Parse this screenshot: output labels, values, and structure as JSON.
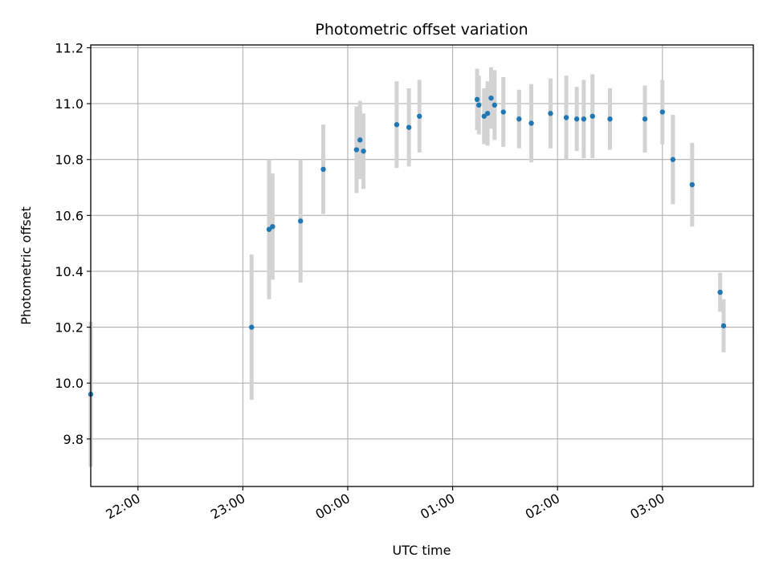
{
  "chart_data": {
    "type": "scatter",
    "title": "Photometric offset variation",
    "xlabel": "UTC time",
    "ylabel": "Photometric offset",
    "grid": true,
    "legend": "none",
    "x_tick_labels": [
      "22:00",
      "23:00",
      "00:00",
      "01:00",
      "02:00",
      "03:00"
    ],
    "x_tick_values": [
      "22:00",
      "23:00",
      "00:00",
      "01:00",
      "02:00",
      "03:00"
    ],
    "y_ticks": [
      9.8,
      10.0,
      10.2,
      10.4,
      10.6,
      10.8,
      11.0,
      11.2
    ],
    "y_tick_labels": [
      "9.8",
      "10.0",
      "10.2",
      "10.4",
      "10.6",
      "10.8",
      "11.0",
      "11.2"
    ],
    "xlim": [
      "21:33",
      "03:52"
    ],
    "ylim": [
      9.63,
      11.21
    ],
    "colors": {
      "point": "#1f77b4",
      "errorbar": "#d3d3d3",
      "grid": "#b0b0b0"
    },
    "series": [
      {
        "points": [
          {
            "x": "21:33",
            "y": 9.96,
            "err": 0.26
          },
          {
            "x": "23:05",
            "y": 10.2,
            "err": 0.26
          },
          {
            "x": "23:15",
            "y": 10.55,
            "err": 0.25
          },
          {
            "x": "23:17",
            "y": 10.56,
            "err": 0.19
          },
          {
            "x": "23:33",
            "y": 10.58,
            "err": 0.22
          },
          {
            "x": "23:46",
            "y": 10.765,
            "err": 0.16
          },
          {
            "x": "00:05",
            "y": 10.835,
            "err": 0.155
          },
          {
            "x": "00:07",
            "y": 10.87,
            "err": 0.14
          },
          {
            "x": "00:09",
            "y": 10.83,
            "err": 0.135
          },
          {
            "x": "00:28",
            "y": 10.925,
            "err": 0.155
          },
          {
            "x": "00:35",
            "y": 10.915,
            "err": 0.14
          },
          {
            "x": "00:41",
            "y": 10.955,
            "err": 0.13
          },
          {
            "x": "01:14",
            "y": 11.015,
            "err": 0.11
          },
          {
            "x": "01:15",
            "y": 10.995,
            "err": 0.105
          },
          {
            "x": "01:18",
            "y": 10.955,
            "err": 0.1
          },
          {
            "x": "01:20",
            "y": 10.965,
            "err": 0.115
          },
          {
            "x": "01:22",
            "y": 11.02,
            "err": 0.11
          },
          {
            "x": "01:24",
            "y": 10.995,
            "err": 0.125
          },
          {
            "x": "01:29",
            "y": 10.97,
            "err": 0.125
          },
          {
            "x": "01:38",
            "y": 10.945,
            "err": 0.105
          },
          {
            "x": "01:45",
            "y": 10.93,
            "err": 0.14
          },
          {
            "x": "01:56",
            "y": 10.965,
            "err": 0.125
          },
          {
            "x": "02:05",
            "y": 10.95,
            "err": 0.15
          },
          {
            "x": "02:11",
            "y": 10.945,
            "err": 0.115
          },
          {
            "x": "02:15",
            "y": 10.945,
            "err": 0.14
          },
          {
            "x": "02:20",
            "y": 10.955,
            "err": 0.15
          },
          {
            "x": "02:30",
            "y": 10.945,
            "err": 0.11
          },
          {
            "x": "02:50",
            "y": 10.945,
            "err": 0.12
          },
          {
            "x": "03:00",
            "y": 10.97,
            "err": 0.115
          },
          {
            "x": "03:06",
            "y": 10.8,
            "err": 0.16
          },
          {
            "x": "03:17",
            "y": 10.71,
            "err": 0.15
          },
          {
            "x": "03:33",
            "y": 10.325,
            "err": 0.07
          },
          {
            "x": "03:35",
            "y": 10.205,
            "err": 0.095
          }
        ]
      }
    ]
  }
}
